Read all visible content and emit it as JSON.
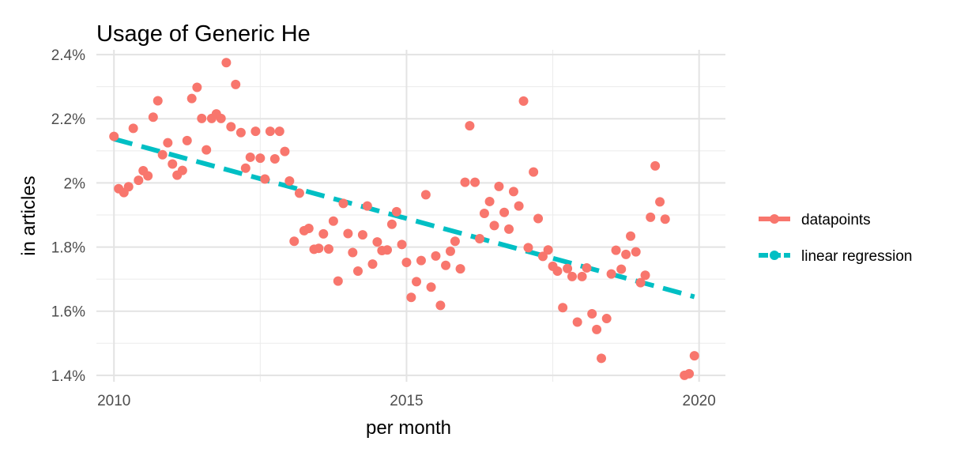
{
  "chart_data": {
    "type": "scatter",
    "title": "Usage of Generic He",
    "xlabel": "per month",
    "ylabel": "in articles",
    "xlim": [
      2009.7,
      2020.45
    ],
    "ylim": [
      1.38,
      2.415
    ],
    "x_ticks": [
      2010,
      2015,
      2020
    ],
    "x_tick_labels": [
      "2010",
      "2015",
      "2020"
    ],
    "x_minor_ticks": [
      2012.5,
      2017.5
    ],
    "y_ticks": [
      1.4,
      1.6,
      1.8,
      2.0,
      2.2,
      2.4
    ],
    "y_tick_labels": [
      "1.4%",
      "1.6%",
      "1.8%",
      "2%",
      "2.2%",
      "2.4%"
    ],
    "y_minor_ticks": [
      1.5,
      1.7,
      1.9,
      2.1,
      2.3
    ],
    "grid": true,
    "legend_position": "right",
    "legend": [
      {
        "label": "datapoints",
        "color": "#F8766D",
        "style": "point"
      },
      {
        "label": "linear regression",
        "color": "#00BFC4",
        "style": "dashed"
      }
    ],
    "series": [
      {
        "name": "datapoints",
        "color": "#F8766D",
        "points": [
          [
            2010.0,
            2.145
          ],
          [
            2010.08,
            1.982
          ],
          [
            2010.17,
            1.97
          ],
          [
            2010.25,
            1.988
          ],
          [
            2010.33,
            2.17
          ],
          [
            2010.42,
            2.008
          ],
          [
            2010.5,
            2.038
          ],
          [
            2010.58,
            2.022
          ],
          [
            2010.67,
            2.205
          ],
          [
            2010.75,
            2.256
          ],
          [
            2010.83,
            2.088
          ],
          [
            2010.92,
            2.125
          ],
          [
            2011.0,
            2.059
          ],
          [
            2011.08,
            2.024
          ],
          [
            2011.17,
            2.039
          ],
          [
            2011.25,
            2.132
          ],
          [
            2011.33,
            2.263
          ],
          [
            2011.42,
            2.298
          ],
          [
            2011.5,
            2.201
          ],
          [
            2011.58,
            2.103
          ],
          [
            2011.67,
            2.201
          ],
          [
            2011.75,
            2.215
          ],
          [
            2011.83,
            2.201
          ],
          [
            2011.92,
            2.375
          ],
          [
            2012.0,
            2.175
          ],
          [
            2012.08,
            2.307
          ],
          [
            2012.17,
            2.157
          ],
          [
            2012.25,
            2.046
          ],
          [
            2012.33,
            2.08
          ],
          [
            2012.42,
            2.161
          ],
          [
            2012.5,
            2.077
          ],
          [
            2012.58,
            2.012
          ],
          [
            2012.67,
            2.161
          ],
          [
            2012.75,
            2.075
          ],
          [
            2012.83,
            2.161
          ],
          [
            2012.92,
            2.098
          ],
          [
            2013.0,
            2.006
          ],
          [
            2013.08,
            1.818
          ],
          [
            2013.17,
            1.968
          ],
          [
            2013.25,
            1.851
          ],
          [
            2013.33,
            1.858
          ],
          [
            2013.42,
            1.793
          ],
          [
            2013.5,
            1.796
          ],
          [
            2013.58,
            1.841
          ],
          [
            2013.67,
            1.794
          ],
          [
            2013.75,
            1.881
          ],
          [
            2013.83,
            1.694
          ],
          [
            2013.92,
            1.936
          ],
          [
            2014.0,
            1.842
          ],
          [
            2014.08,
            1.783
          ],
          [
            2014.17,
            1.725
          ],
          [
            2014.25,
            1.838
          ],
          [
            2014.33,
            1.928
          ],
          [
            2014.42,
            1.747
          ],
          [
            2014.5,
            1.816
          ],
          [
            2014.58,
            1.789
          ],
          [
            2014.67,
            1.791
          ],
          [
            2014.75,
            1.871
          ],
          [
            2014.83,
            1.91
          ],
          [
            2014.92,
            1.808
          ],
          [
            2015.0,
            1.752
          ],
          [
            2015.08,
            1.643
          ],
          [
            2015.17,
            1.692
          ],
          [
            2015.25,
            1.758
          ],
          [
            2015.33,
            1.963
          ],
          [
            2015.42,
            1.675
          ],
          [
            2015.5,
            1.772
          ],
          [
            2015.58,
            1.618
          ],
          [
            2015.67,
            1.743
          ],
          [
            2015.75,
            1.787
          ],
          [
            2015.83,
            1.818
          ],
          [
            2015.92,
            1.732
          ],
          [
            2016.0,
            2.002
          ],
          [
            2016.08,
            2.178
          ],
          [
            2016.17,
            2.002
          ],
          [
            2016.25,
            1.826
          ],
          [
            2016.33,
            1.905
          ],
          [
            2016.42,
            1.942
          ],
          [
            2016.5,
            1.867
          ],
          [
            2016.58,
            1.989
          ],
          [
            2016.67,
            1.908
          ],
          [
            2016.75,
            1.856
          ],
          [
            2016.83,
            1.973
          ],
          [
            2016.92,
            1.928
          ],
          [
            2017.0,
            2.255
          ],
          [
            2017.08,
            1.798
          ],
          [
            2017.17,
            2.034
          ],
          [
            2017.25,
            1.889
          ],
          [
            2017.33,
            1.771
          ],
          [
            2017.42,
            1.791
          ],
          [
            2017.5,
            1.74
          ],
          [
            2017.58,
            1.725
          ],
          [
            2017.67,
            1.611
          ],
          [
            2017.75,
            1.733
          ],
          [
            2017.83,
            1.708
          ],
          [
            2017.92,
            1.566
          ],
          [
            2018.0,
            1.708
          ],
          [
            2018.08,
            1.735
          ],
          [
            2018.17,
            1.592
          ],
          [
            2018.25,
            1.543
          ],
          [
            2018.33,
            1.453
          ],
          [
            2018.42,
            1.577
          ],
          [
            2018.5,
            1.716
          ],
          [
            2018.58,
            1.79
          ],
          [
            2018.67,
            1.731
          ],
          [
            2018.75,
            1.777
          ],
          [
            2018.83,
            1.834
          ],
          [
            2018.92,
            1.785
          ],
          [
            2019.0,
            1.689
          ],
          [
            2019.08,
            1.712
          ],
          [
            2019.17,
            1.893
          ],
          [
            2019.25,
            2.053
          ],
          [
            2019.33,
            1.941
          ],
          [
            2019.42,
            1.887
          ],
          [
            2019.75,
            1.4
          ],
          [
            2019.83,
            1.405
          ],
          [
            2019.92,
            1.461
          ]
        ]
      },
      {
        "name": "linear regression",
        "color": "#00BFC4",
        "line": [
          [
            2010.0,
            2.137
          ],
          [
            2019.92,
            1.645
          ]
        ]
      }
    ]
  }
}
